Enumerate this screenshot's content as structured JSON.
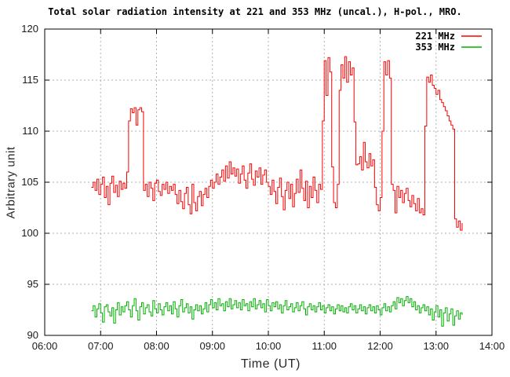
{
  "title": "Total solar radiation intensity at 221 and 353 MHz (uncal.), H-pol., MRO.",
  "axes": {
    "xlabel": "Time (UT)",
    "ylabel": "Arbitrary unit"
  },
  "chart_data": {
    "type": "line",
    "title": "Total solar radiation intensity at 221 and 353 MHz (uncal.), H-pol., MRO.",
    "xlabel": "Time (UT)",
    "ylabel": "Arbitrary unit",
    "xlim": [
      6,
      14
    ],
    "ylim": [
      90,
      120
    ],
    "xticks": [
      {
        "v": 6,
        "label": "06:00"
      },
      {
        "v": 7,
        "label": "07:00"
      },
      {
        "v": 8,
        "label": "08:00"
      },
      {
        "v": 9,
        "label": "09:00"
      },
      {
        "v": 10,
        "label": "10:00"
      },
      {
        "v": 11,
        "label": "11:00"
      },
      {
        "v": 12,
        "label": "12:00"
      },
      {
        "v": 13,
        "label": "13:00"
      },
      {
        "v": 14,
        "label": "14:00"
      }
    ],
    "yticks": [
      90,
      95,
      100,
      105,
      110,
      115,
      120
    ],
    "grid": true,
    "grid_color": "#b0b0b0",
    "border_color": "#000000",
    "legend_position": "top-right-inside",
    "series": [
      {
        "name": "221 MHz",
        "color": "#ff0000",
        "t0": 6.8333,
        "dt": 0.033333,
        "values": [
          104.5,
          105.0,
          104.2,
          105.3,
          103.8,
          104.8,
          105.5,
          103.5,
          104.6,
          102.8,
          104.9,
          105.6,
          104.0,
          104.7,
          103.6,
          105.1,
          104.3,
          104.9,
          104.4,
          106.0,
          111.0,
          112.2,
          111.8,
          112.3,
          110.6,
          112.1,
          112.3,
          111.9,
          104.2,
          104.8,
          103.6,
          105.0,
          104.4,
          103.2,
          104.9,
          105.2,
          104.1,
          103.7,
          104.8,
          104.3,
          105.0,
          103.9,
          104.6,
          104.2,
          104.8,
          103.8,
          102.9,
          104.2,
          103.1,
          102.4,
          103.9,
          104.5,
          102.8,
          101.9,
          104.8,
          103.0,
          102.2,
          103.6,
          104.1,
          102.7,
          103.8,
          104.4,
          103.5,
          104.6,
          105.2,
          104.4,
          105.0,
          105.8,
          104.8,
          105.5,
          106.2,
          105.1,
          106.6,
          105.4,
          107.0,
          105.8,
          106.4,
          105.6,
          106.3,
          104.9,
          105.8,
          106.6,
          105.2,
          104.4,
          105.9,
          106.8,
          105.3,
          104.7,
          106.1,
          105.5,
          106.4,
          104.8,
          105.7,
          106.2,
          105.0,
          104.6,
          103.8,
          105.2,
          104.1,
          102.9,
          104.5,
          105.4,
          103.6,
          102.3,
          104.2,
          105.0,
          103.4,
          104.8,
          102.6,
          103.9,
          105.3,
          104.0,
          106.2,
          104.4,
          103.2,
          105.1,
          102.5,
          104.6,
          103.5,
          105.5,
          104.2,
          103.0,
          104.8,
          104.3,
          111.0,
          116.9,
          113.5,
          117.2,
          115.8,
          106.5,
          103.0,
          102.5,
          104.8,
          114.0,
          116.5,
          115.2,
          117.3,
          114.8,
          116.8,
          115.5,
          116.2,
          110.9,
          106.7,
          106.8,
          107.5,
          106.2,
          108.9,
          107.0,
          106.4,
          107.8,
          106.6,
          107.2,
          104.5,
          102.8,
          102.2,
          103.5,
          110.0,
          116.8,
          115.5,
          116.9,
          115.2,
          104.8,
          104.2,
          102.0,
          104.6,
          103.5,
          104.2,
          103.0,
          103.9,
          104.4,
          103.2,
          102.6,
          103.7,
          102.9,
          102.2,
          103.4,
          102.0,
          102.4,
          101.8,
          110.5,
          115.3,
          114.8,
          115.5,
          114.5,
          114.2,
          113.6,
          114.0,
          113.1,
          112.8,
          112.4,
          112.0,
          111.5,
          111.0,
          110.6,
          110.2,
          101.4,
          100.6,
          101.2,
          100.3,
          101.0
        ]
      },
      {
        "name": "353 MHz",
        "color": "#00b000",
        "t0": 6.8333,
        "dt": 0.033333,
        "values": [
          92.4,
          92.9,
          91.8,
          92.6,
          93.1,
          92.2,
          91.3,
          92.8,
          93.0,
          92.3,
          91.9,
          92.7,
          91.2,
          92.5,
          93.2,
          92.0,
          92.8,
          92.3,
          92.9,
          93.3,
          92.5,
          91.8,
          92.9,
          93.6,
          92.4,
          91.5,
          92.8,
          93.2,
          92.1,
          92.7,
          93.0,
          92.3,
          91.9,
          93.4,
          92.6,
          92.2,
          93.1,
          92.5,
          92.0,
          92.8,
          93.2,
          92.4,
          92.9,
          92.1,
          93.3,
          92.6,
          91.8,
          92.9,
          93.5,
          92.3,
          92.7,
          93.1,
          92.2,
          92.8,
          91.6,
          92.5,
          93.0,
          92.4,
          92.9,
          92.1,
          92.6,
          93.2,
          92.3,
          93.0,
          93.5,
          92.7,
          93.2,
          92.5,
          93.6,
          92.9,
          93.1,
          92.4,
          93.3,
          92.8,
          93.6,
          92.6,
          93.0,
          93.4,
          92.7,
          93.2,
          92.5,
          93.5,
          92.9,
          93.1,
          92.4,
          93.3,
          92.8,
          93.6,
          92.6,
          93.0,
          93.4,
          92.7,
          93.1,
          92.3,
          93.5,
          92.9,
          92.4,
          93.2,
          92.8,
          93.3,
          92.6,
          93.0,
          92.2,
          92.9,
          93.4,
          92.5,
          92.8,
          93.1,
          92.3,
          92.7,
          93.2,
          92.4,
          92.9,
          93.3,
          92.6,
          92.0,
          92.8,
          93.1,
          92.5,
          92.9,
          92.3,
          92.8,
          93.2,
          92.5,
          92.9,
          92.2,
          92.7,
          93.0,
          92.4,
          92.8,
          92.1,
          92.6,
          93.0,
          92.4,
          92.9,
          92.3,
          92.7,
          92.2,
          92.8,
          93.1,
          92.5,
          92.9,
          92.2,
          92.6,
          93.0,
          92.4,
          92.8,
          92.1,
          92.7,
          93.0,
          92.4,
          92.8,
          92.2,
          92.9,
          92.5,
          92.0,
          92.7,
          93.1,
          92.4,
          92.8,
          92.3,
          92.9,
          93.3,
          92.6,
          93.7,
          93.2,
          93.6,
          92.9,
          93.4,
          93.8,
          93.2,
          93.6,
          92.8,
          93.3,
          92.5,
          92.9,
          92.2,
          92.7,
          93.0,
          92.4,
          92.8,
          92.0,
          92.6,
          91.5,
          92.3,
          92.9,
          91.8,
          92.5,
          90.9,
          92.2,
          92.7,
          91.4,
          92.1,
          92.6,
          91.0,
          91.9,
          92.4,
          91.6,
          92.2,
          92.0
        ]
      }
    ]
  }
}
